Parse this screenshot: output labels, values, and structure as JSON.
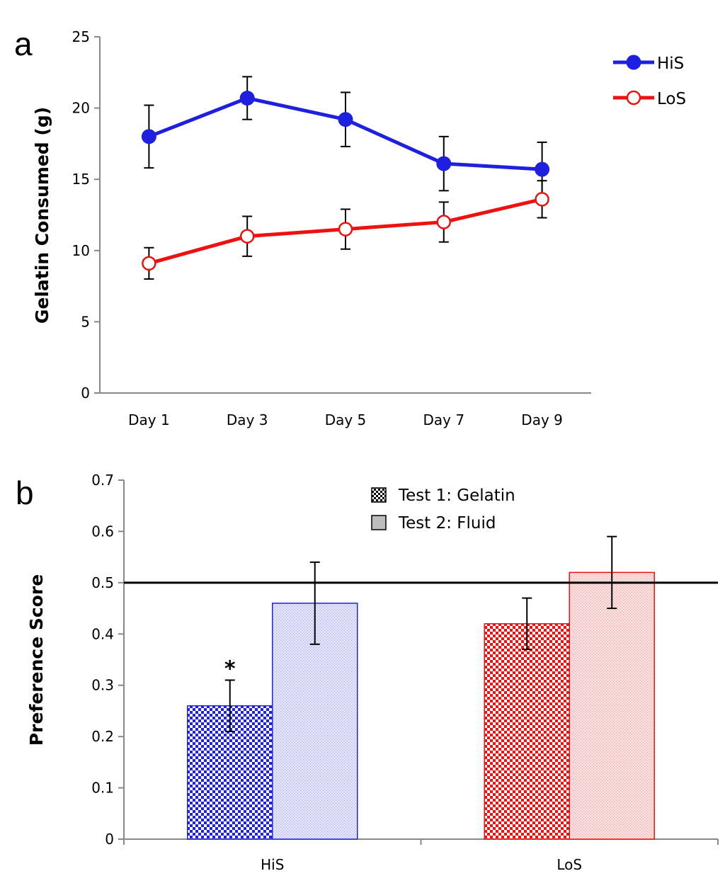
{
  "chart_data": [
    {
      "type": "line",
      "panel_label": "a",
      "title": "",
      "xlabel": "",
      "ylabel": "Gelatin Consumed (g)",
      "categories": [
        "Day 1",
        "Day 3",
        "Day 5",
        "Day 7",
        "Day 9"
      ],
      "ylim": [
        0,
        25
      ],
      "yticks": [
        "0",
        "5",
        "10",
        "15",
        "20",
        "25"
      ],
      "legend_position": "top-right",
      "series": [
        {
          "name": "HiS",
          "color": "#1f1fe0",
          "marker": "filled-circle",
          "values": [
            18.0,
            20.7,
            19.2,
            16.1,
            15.7
          ],
          "errors": [
            2.2,
            1.5,
            1.9,
            1.9,
            1.9
          ]
        },
        {
          "name": "LoS",
          "color": "#ee1111",
          "marker": "open-circle",
          "values": [
            9.1,
            11.0,
            11.5,
            12.0,
            13.6
          ],
          "errors": [
            1.1,
            1.4,
            1.4,
            1.4,
            1.3
          ]
        }
      ]
    },
    {
      "type": "bar",
      "panel_label": "b",
      "title": "",
      "xlabel": "",
      "ylabel": "Preference Score",
      "categories": [
        "HiS",
        "LoS"
      ],
      "ylim": [
        0,
        0.7
      ],
      "yticks": [
        "0",
        "0.1",
        "0.2",
        "0.3",
        "0.4",
        "0.5",
        "0.6",
        "0.7"
      ],
      "reference_line": 0.5,
      "legend_position": "top-center",
      "series": [
        {
          "name": "Test 1: Gelatin",
          "pattern": "checker",
          "values": [
            0.26,
            0.42
          ],
          "errors": [
            0.05,
            0.05
          ]
        },
        {
          "name": "Test 2: Fluid",
          "pattern": "light",
          "values": [
            0.46,
            0.52
          ],
          "errors": [
            0.08,
            0.07
          ]
        }
      ],
      "group_colors": [
        "#2222dd",
        "#ee1111"
      ],
      "annotations": [
        {
          "text": "*",
          "category": "HiS",
          "series": "Test 1: Gelatin"
        }
      ]
    }
  ]
}
